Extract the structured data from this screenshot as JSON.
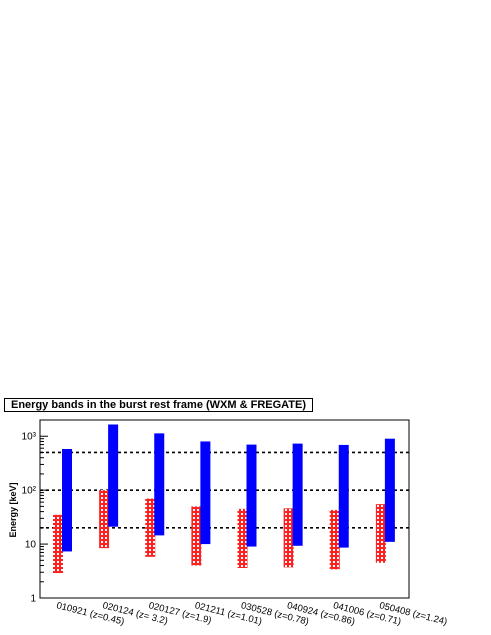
{
  "chart_data": {
    "type": "bar",
    "title": "Energy bands in the burst rest frame (WXM & FREGATE)",
    "ylabel": "Energy [keV]",
    "xlabel": "",
    "y_scale": "log",
    "ylim": [
      1,
      2000
    ],
    "y_ticks": [
      {
        "value": 1,
        "label": "1"
      },
      {
        "value": 10,
        "label": "10"
      },
      {
        "value": 100,
        "label": "10²"
      },
      {
        "value": 1000,
        "label": "10³"
      }
    ],
    "reference_lines": [
      20,
      100,
      500
    ],
    "reference_line_style": "dotted",
    "grid": false,
    "categories": [
      "010921 (z=0.45)",
      "020124 (z= 3.2)",
      "020127 (z=1.9)",
      "021211 (z=1.01)",
      "030528 (z=0.78)",
      "040924 (z=0.86)",
      "041006 (z=0.71)",
      "050408 (z=1.24)"
    ],
    "series": [
      {
        "color": "#ff2020",
        "style": "hatched",
        "ranges": [
          [
            2.9,
            35
          ],
          [
            8.4,
            100
          ],
          [
            5.8,
            70
          ],
          [
            4.0,
            50
          ],
          [
            3.6,
            45
          ],
          [
            3.7,
            46
          ],
          [
            3.4,
            43
          ],
          [
            4.5,
            55
          ]
        ]
      },
      {
        "color": "#0000ff",
        "style": "solid",
        "ranges": [
          [
            7.3,
            580
          ],
          [
            21,
            1650
          ],
          [
            14.5,
            1130
          ],
          [
            10,
            800
          ],
          [
            9,
            700
          ],
          [
            9.3,
            730
          ],
          [
            8.6,
            690
          ],
          [
            11,
            900
          ]
        ]
      }
    ]
  }
}
